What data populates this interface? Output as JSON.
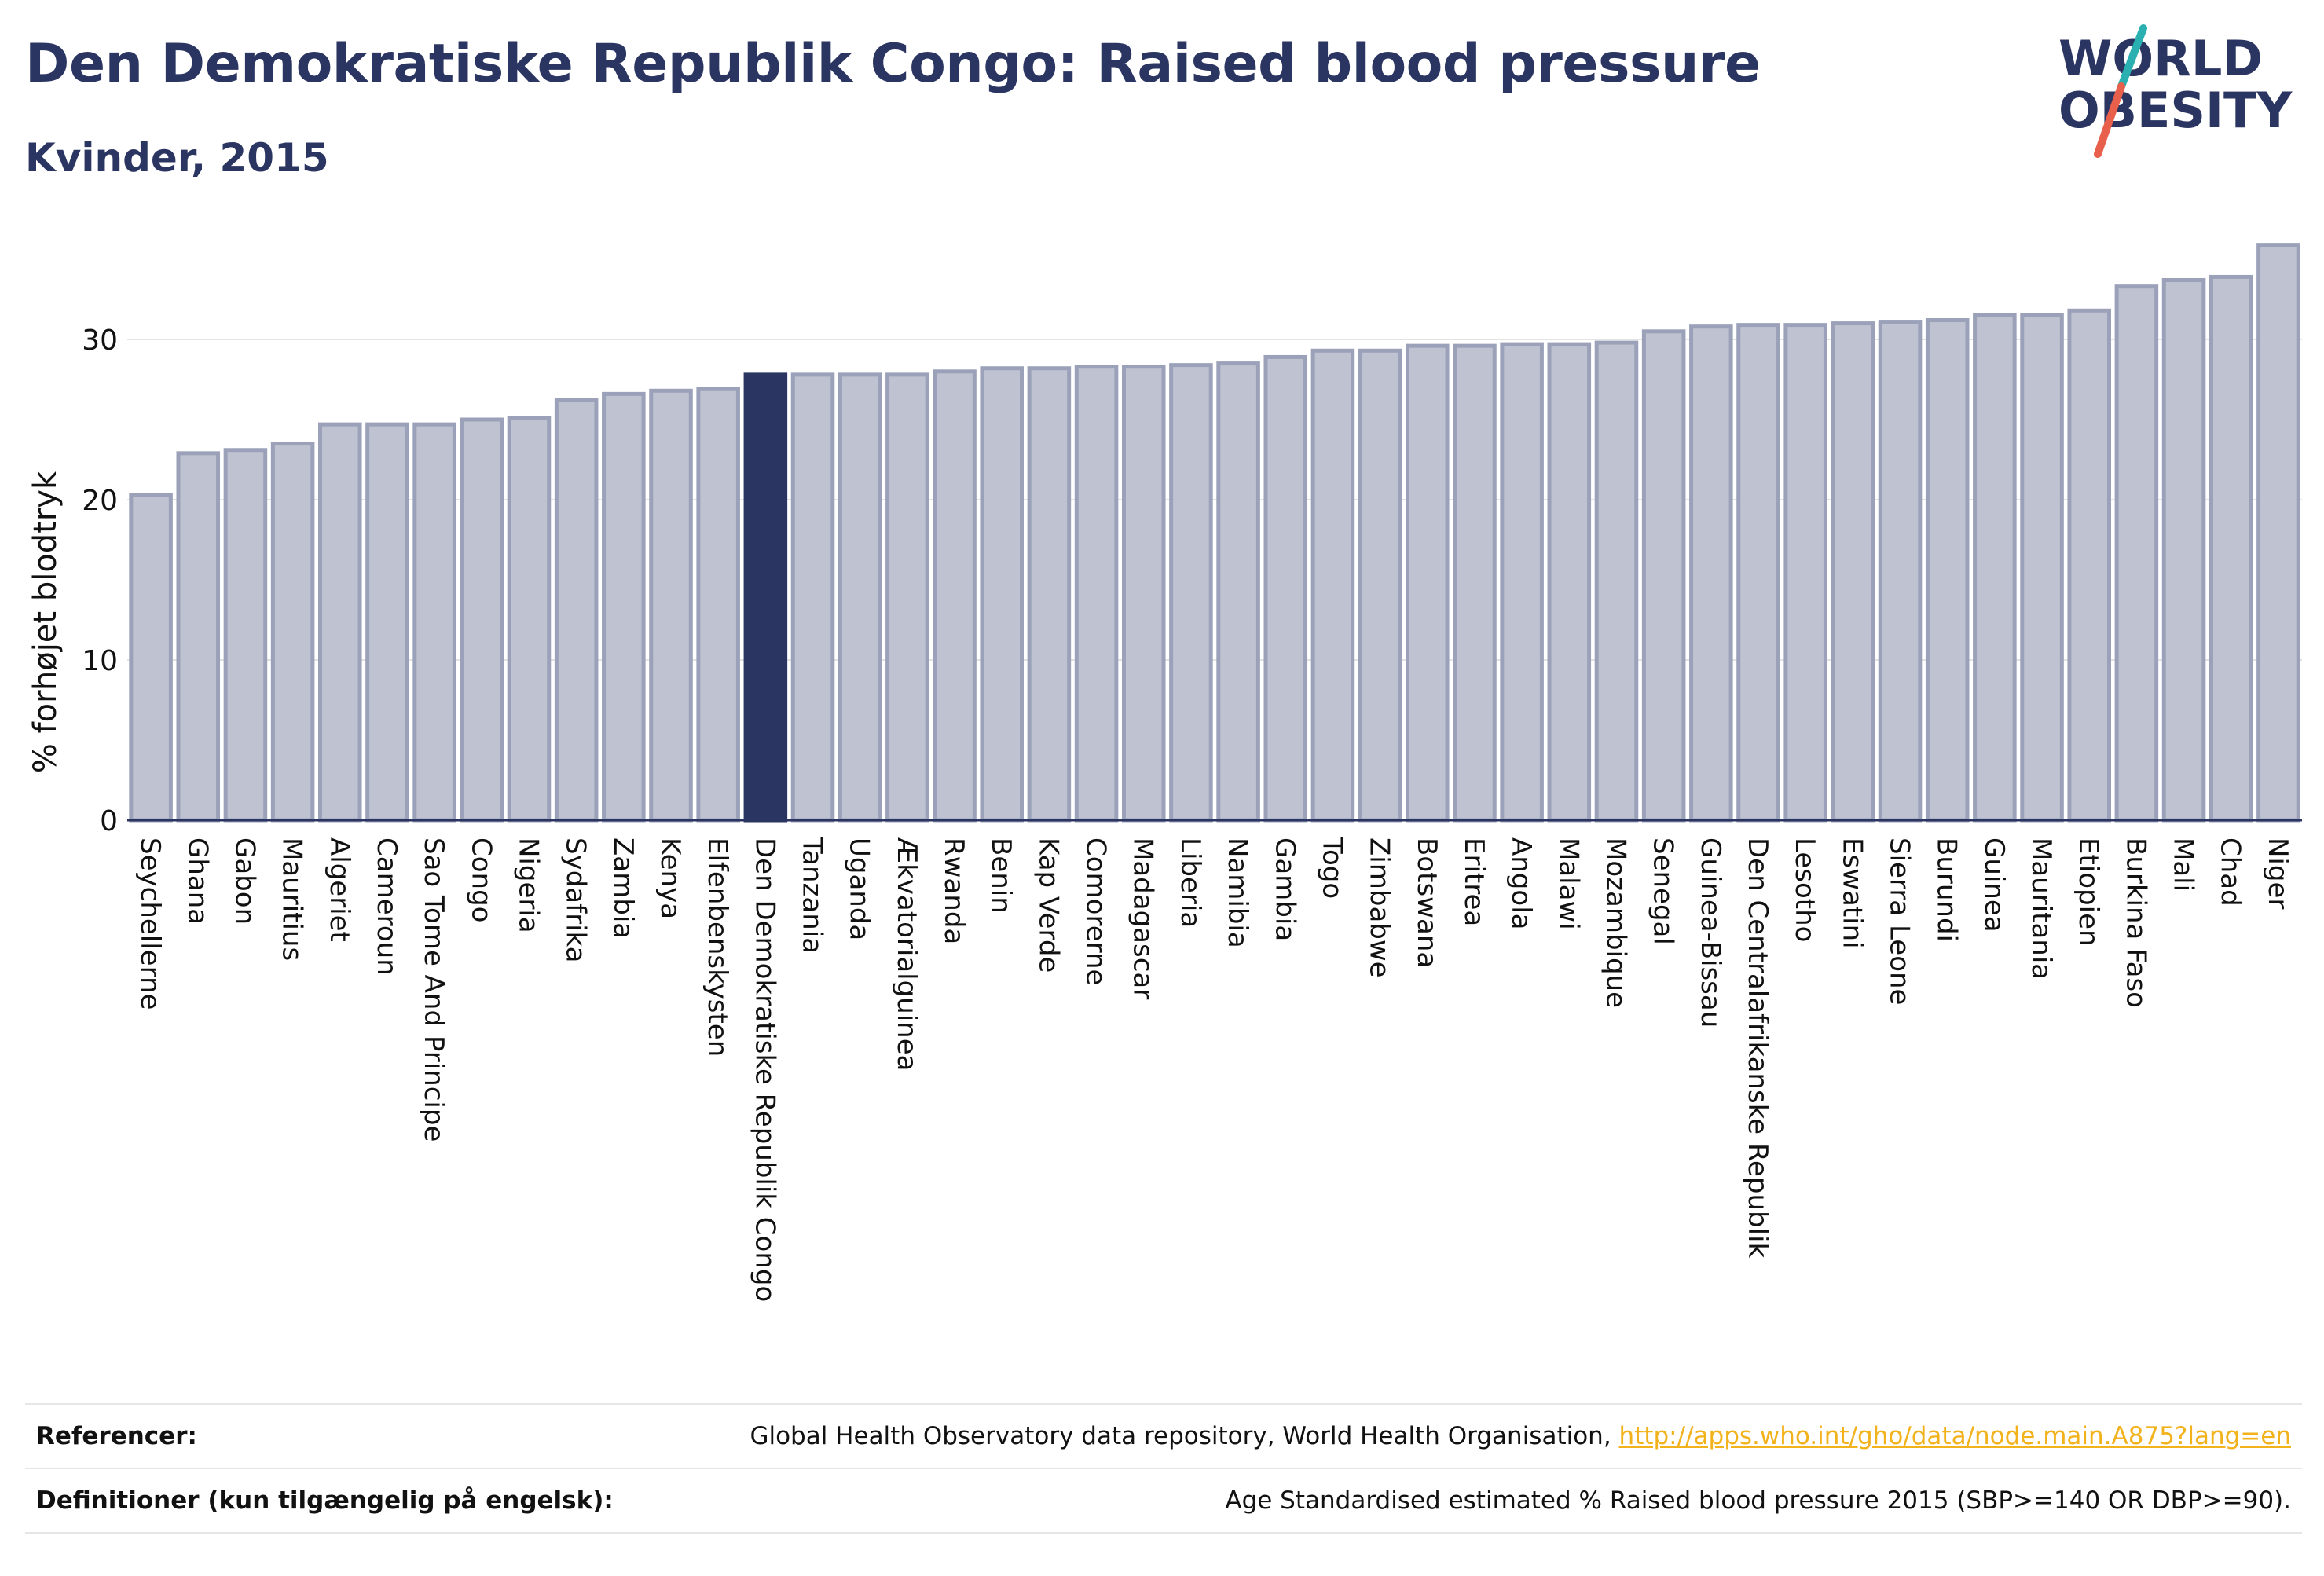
{
  "header": {
    "title": "Den Demokratiske Republik Congo: Raised blood pressure",
    "subtitle": "Kvinder, 2015"
  },
  "logo": {
    "line1": "WORLD",
    "line2": "OBESITY",
    "slash_color_top": "#2ab0b0",
    "slash_color_bottom": "#e8604c"
  },
  "chart_data": {
    "type": "bar",
    "ylabel": "% forhøjet blodtryk",
    "ylim": [
      0,
      37
    ],
    "yticks": [
      0,
      10,
      20,
      30
    ],
    "grid": true,
    "highlight": "Den Demokratiske Republik Congo",
    "bar_color": "#bfc3d1",
    "bar_edge_color": "#9ba1b8",
    "highlight_color": "#2b3561",
    "categories": [
      "Seychellerne",
      "Ghana",
      "Gabon",
      "Mauritius",
      "Algeriet",
      "Cameroun",
      "Sao Tome And Principe",
      "Congo",
      "Nigeria",
      "Sydafrika",
      "Zambia",
      "Kenya",
      "Elfenbenskysten",
      "Den Demokratiske Republik Congo",
      "Tanzania",
      "Uganda",
      "Ækvatorialguinea",
      "Rwanda",
      "Benin",
      "Kap Verde",
      "Comorerne",
      "Madagascar",
      "Liberia",
      "Namibia",
      "Gambia",
      "Togo",
      "Zimbabwe",
      "Botswana",
      "Eritrea",
      "Angola",
      "Malawi",
      "Mozambique",
      "Senegal",
      "Guinea-Bissau",
      "Den Centralafrikanske Republik",
      "Lesotho",
      "Eswatini",
      "Sierra Leone",
      "Burundi",
      "Guinea",
      "Mauritania",
      "Etiopien",
      "Burkina Faso",
      "Mali",
      "Chad",
      "Niger"
    ],
    "values": [
      20.3,
      22.9,
      23.1,
      23.5,
      24.7,
      24.7,
      24.7,
      25.0,
      25.1,
      26.2,
      26.6,
      26.8,
      26.9,
      27.8,
      27.8,
      27.8,
      27.8,
      28.0,
      28.2,
      28.2,
      28.3,
      28.3,
      28.4,
      28.5,
      28.9,
      29.3,
      29.3,
      29.6,
      29.6,
      29.7,
      29.7,
      29.8,
      30.5,
      30.8,
      30.9,
      30.9,
      31.0,
      31.1,
      31.2,
      31.5,
      31.5,
      31.8,
      33.3,
      33.7,
      33.9,
      35.9
    ]
  },
  "footer": {
    "references_label": "Referencer:",
    "references_text": "Global Health Observatory data repository, World Health Organisation, ",
    "references_link": "http://apps.who.int/gho/data/node.main.A875?lang=en",
    "definitions_label": "Definitioner (kun tilgængelig på engelsk):",
    "definitions_text": "Age Standardised estimated % Raised blood pressure 2015 (SBP>=140 OR DBP>=90)."
  }
}
